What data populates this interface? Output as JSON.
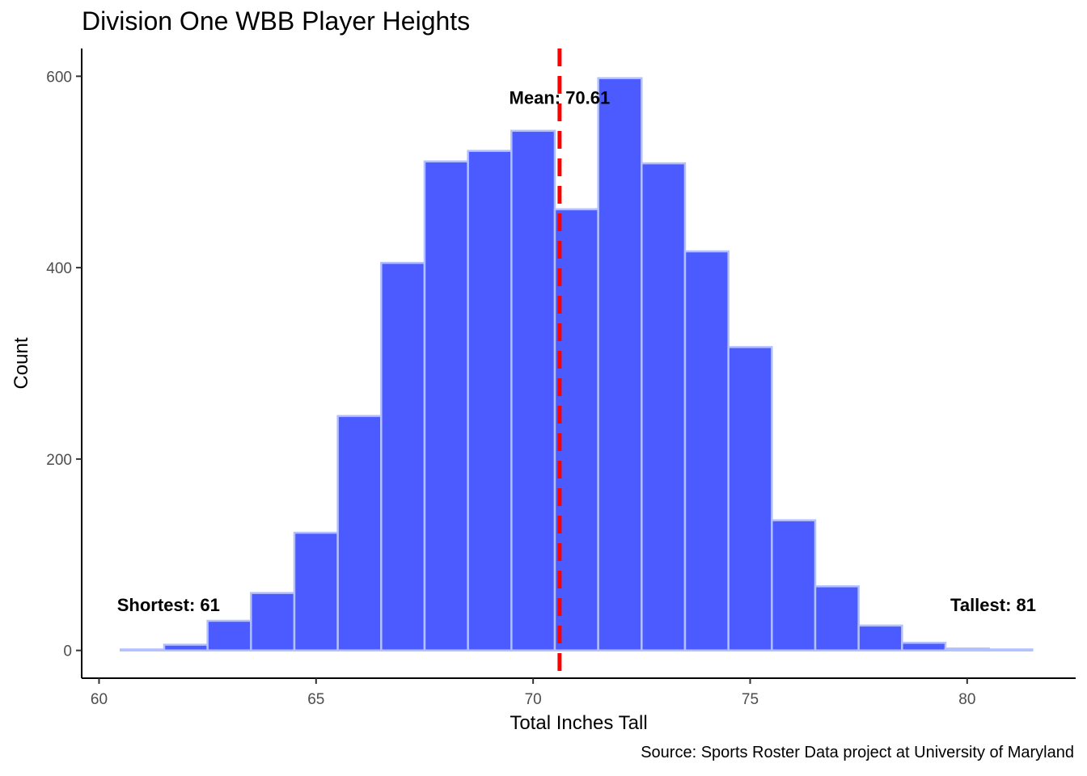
{
  "chart_data": {
    "type": "bar",
    "title": "Division One WBB Player Heights",
    "xlabel": "Total Inches Tall",
    "ylabel": "Count",
    "caption": "Source: Sports Roster Data project at University of Maryland",
    "bin_centers": [
      61,
      62,
      63,
      64,
      65,
      66,
      67,
      68,
      69,
      70,
      71,
      72,
      73,
      74,
      75,
      76,
      77,
      78,
      79,
      80,
      81
    ],
    "values": [
      1,
      6,
      31,
      60,
      123,
      245,
      405,
      511,
      522,
      543,
      461,
      598,
      509,
      417,
      317,
      136,
      67,
      26,
      8,
      2,
      1
    ],
    "bin_width": 1,
    "xlim": [
      59.6,
      82.5
    ],
    "ylim": [
      -29,
      629
    ],
    "x_ticks": [
      60,
      65,
      70,
      75,
      80
    ],
    "y_ticks": [
      0,
      200,
      400,
      600
    ],
    "grid": false,
    "colors": {
      "bar_fill": "#4b5bff",
      "bar_outline": "#b3c0ff",
      "mean_line": "#ff0000"
    },
    "mean": {
      "value": 70.61,
      "label": "Mean: 70.61",
      "label_y": 578
    },
    "annotations": [
      {
        "label": "Shortest: 61",
        "x": 61.6,
        "y": 48
      },
      {
        "label": "Tallest: 81",
        "x": 80.6,
        "y": 48
      }
    ]
  }
}
